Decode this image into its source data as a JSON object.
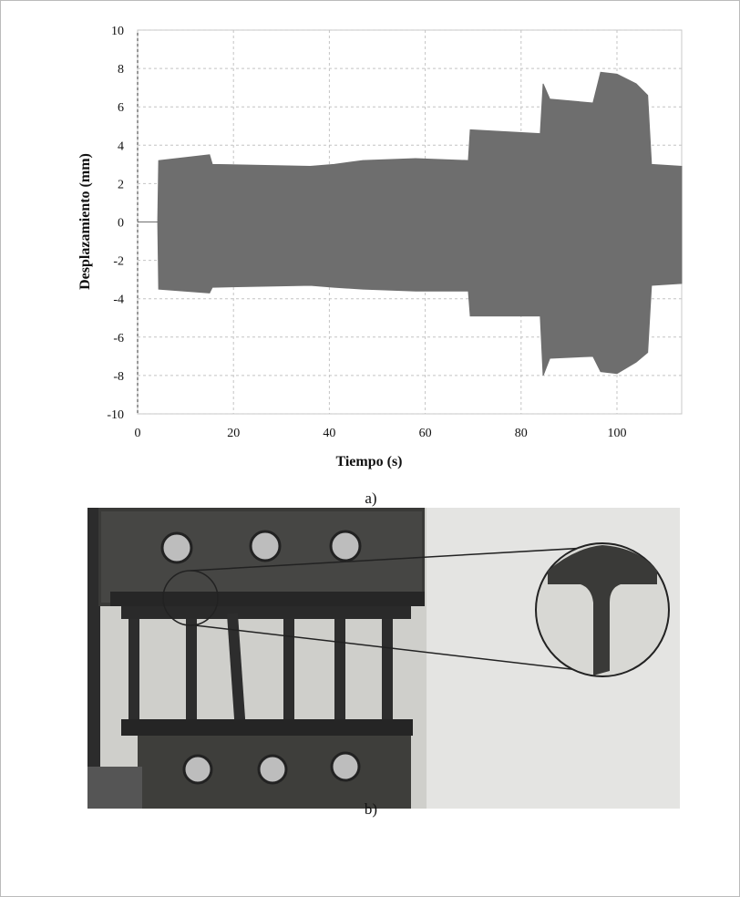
{
  "chart_data": {
    "type": "range_area",
    "xlabel": "Tiempo (s)",
    "ylabel": "Desplazamiento (mm)",
    "x": [
      0,
      4.2,
      4.4,
      15,
      15.6,
      36,
      41,
      47,
      58,
      69,
      69.4,
      84,
      84.6,
      86,
      95,
      96.6,
      100,
      104,
      106.4,
      107.2,
      113.5
    ],
    "high": [
      0,
      0,
      3.2,
      3.5,
      3.0,
      2.9,
      3.0,
      3.2,
      3.3,
      3.2,
      4.8,
      4.6,
      7.2,
      6.4,
      6.2,
      7.8,
      7.7,
      7.2,
      6.6,
      3.0,
      2.9
    ],
    "low": [
      0,
      0,
      -3.5,
      -3.7,
      -3.4,
      -3.3,
      -3.4,
      -3.5,
      -3.6,
      -3.6,
      -4.9,
      -4.9,
      -8.0,
      -7.1,
      -7.0,
      -7.8,
      -7.9,
      -7.3,
      -6.8,
      -3.3,
      -3.2
    ],
    "color": "#6e6e6e",
    "xlim": [
      0,
      113.5
    ],
    "xticks": [
      0,
      20,
      40,
      60,
      80,
      100
    ],
    "ylim": [
      -10,
      10
    ],
    "yticks": [
      -10,
      -8,
      -6,
      -4,
      -2,
      0,
      2,
      4,
      6,
      8,
      10
    ],
    "grid": true
  },
  "captions": [
    "a)",
    "b)"
  ]
}
